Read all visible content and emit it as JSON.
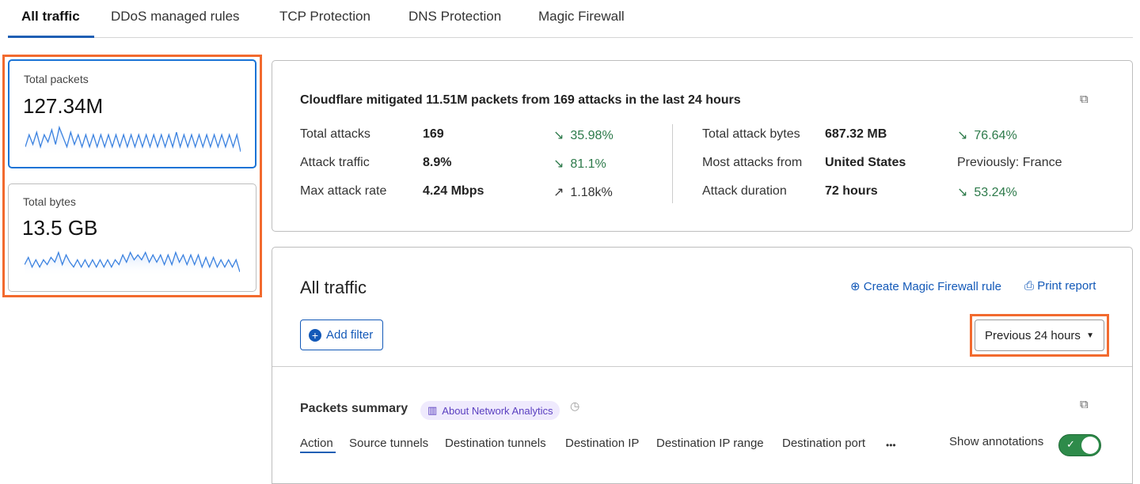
{
  "tabs": [
    {
      "label": "All traffic",
      "active": true
    },
    {
      "label": "DDoS managed rules"
    },
    {
      "label": "TCP Protection"
    },
    {
      "label": "DNS Protection"
    },
    {
      "label": "Magic Firewall"
    }
  ],
  "metrics": [
    {
      "label": "Total packets",
      "value": "127.34M",
      "selected": true,
      "spark": [
        3,
        8,
        4,
        9,
        3,
        8,
        5,
        10,
        4,
        11,
        7,
        3,
        9,
        4,
        8,
        3,
        8,
        3,
        8,
        3,
        8,
        3,
        8,
        3,
        8,
        3,
        8,
        3,
        8,
        3,
        8,
        3,
        8,
        3,
        8,
        3,
        8,
        3,
        8,
        3,
        9,
        3,
        8,
        3,
        8,
        3,
        8,
        3,
        8,
        3,
        8,
        3,
        8,
        3,
        8,
        3,
        8,
        1
      ]
    },
    {
      "label": "Total bytes",
      "value": "13.5 GB",
      "selected": false,
      "spark": [
        4,
        7,
        3,
        6,
        3,
        6,
        4,
        7,
        5,
        9,
        4,
        8,
        5,
        3,
        6,
        3,
        6,
        3,
        6,
        3,
        6,
        3,
        6,
        3,
        6,
        4,
        8,
        5,
        9,
        6,
        8,
        6,
        9,
        5,
        8,
        5,
        8,
        4,
        8,
        4,
        9,
        5,
        8,
        4,
        8,
        4,
        8,
        3,
        7,
        3,
        7,
        3,
        6,
        3,
        6,
        3,
        6,
        1
      ]
    }
  ],
  "summary": {
    "headline": "Cloudflare mitigated 11.51M packets from 169 attacks in the last 24 hours",
    "left": [
      {
        "label": "Total attacks",
        "value": "169",
        "change": "35.98%",
        "direction": "down"
      },
      {
        "label": "Attack traffic",
        "value": "8.9%",
        "change": "81.1%",
        "direction": "down"
      },
      {
        "label": "Max attack rate",
        "value": "4.24 Mbps",
        "change": "1.18k%",
        "direction": "up"
      }
    ],
    "right": [
      {
        "label": "Total attack bytes",
        "value": "687.32 MB",
        "change": "76.64%",
        "direction": "down"
      },
      {
        "label": "Most attacks from",
        "value": "United States",
        "change": "Previously: France",
        "direction": "none"
      },
      {
        "label": "Attack duration",
        "value": "72 hours",
        "change": "53.24%",
        "direction": "down"
      }
    ]
  },
  "traffic": {
    "title": "All traffic",
    "create_rule": "Create Magic Firewall rule",
    "print_report": "Print report",
    "add_filter": "Add filter",
    "time_range": "Previous 24 hours"
  },
  "packets": {
    "title": "Packets summary",
    "about": "About Network Analytics",
    "subtabs": [
      "Action",
      "Source tunnels",
      "Destination tunnels",
      "Destination IP",
      "Destination IP range",
      "Destination port"
    ],
    "more": "•••",
    "show_annotations": "Show annotations",
    "annotations_on": true
  },
  "colors": {
    "accent": "#1359b8",
    "highlight": "#f26a2e",
    "positive": "#2d7a4a",
    "toggle": "#2e8b4a"
  }
}
